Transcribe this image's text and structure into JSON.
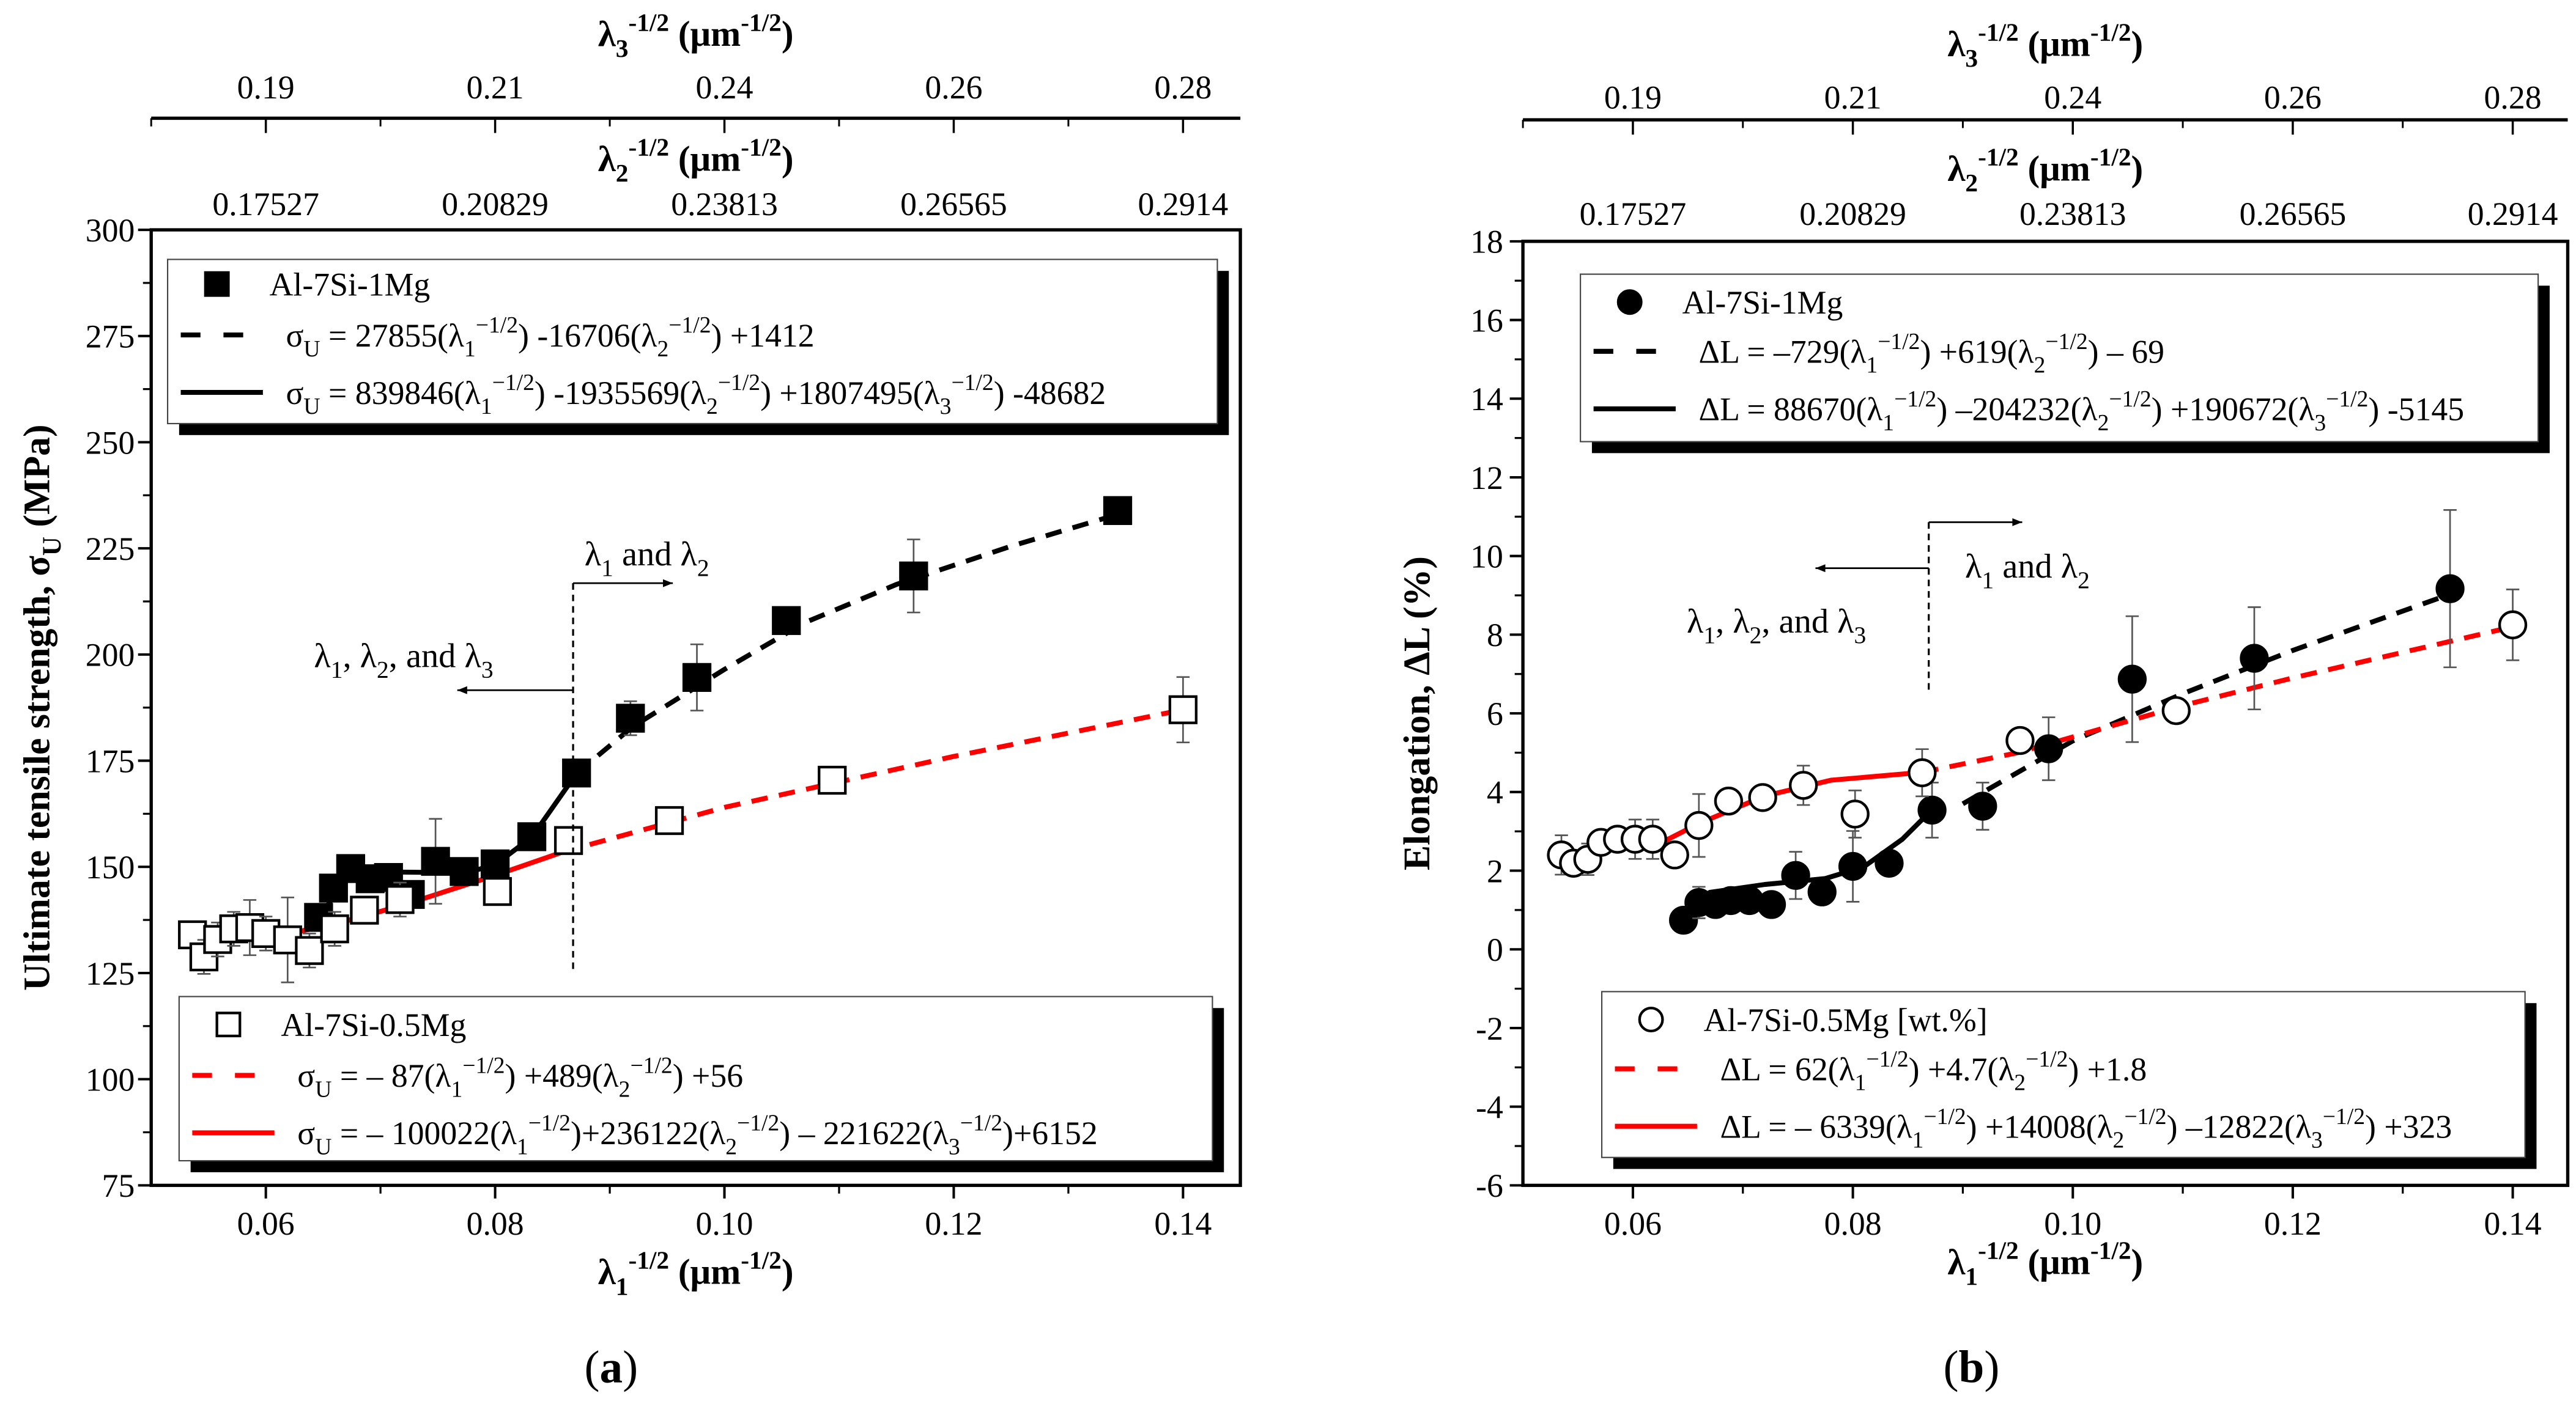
{
  "chart_data": [
    {
      "type": "scatter",
      "panel_label": "(a)",
      "xlabel": "λ_{1}^{-1/2} (μm^{-1/2})",
      "ylabel": "Ultimate tensile strength, σ_{U} (MPa)",
      "xlim": [
        0.05,
        0.145
      ],
      "ylim": [
        75,
        300
      ],
      "xticks": [
        0.06,
        0.08,
        0.1,
        0.12,
        0.14
      ],
      "xtick_labels": [
        "0.06",
        "0.08",
        "0.10",
        "0.12",
        "0.14"
      ],
      "yticks": [
        75,
        100,
        125,
        150,
        175,
        200,
        225,
        250,
        275,
        300
      ],
      "ytick_labels": [
        "75",
        "100",
        "125",
        "150",
        "175",
        "200",
        "225",
        "250",
        "275",
        "300"
      ],
      "top_axes": [
        {
          "label": "λ_{3}^{-1/2} (μm^{-1/2})",
          "tick_labels": [
            "0.19",
            "0.21",
            "0.24",
            "0.26",
            "0.28"
          ]
        },
        {
          "label": "λ_{2}^{-1/2} (μm^{-1/2})",
          "tick_labels": [
            "0.17527",
            "0.20829",
            "0.23813",
            "0.26565",
            "0.2914"
          ]
        }
      ],
      "series": [
        {
          "name": "Al-7Si-1Mg",
          "marker": "filled-square",
          "color": "#000000",
          "x": [
            0.0646,
            0.0659,
            0.0674,
            0.0691,
            0.0707,
            0.0726,
            0.0748,
            0.0773,
            0.08,
            0.0832,
            0.0871,
            0.0918,
            0.0976,
            0.1054,
            0.1165,
            0.1343
          ],
          "y": [
            138.1,
            145.0,
            149.6,
            147.2,
            147.5,
            143.5,
            151.3,
            148.9,
            150.7,
            157.1,
            172.1,
            185.0,
            194.6,
            208.0,
            218.5,
            233.9
          ],
          "err": [
            2,
            3,
            3,
            2,
            2,
            3,
            10,
            3,
            2,
            2,
            2,
            4,
            7.8,
            2,
            8.6,
            1.5
          ]
        },
        {
          "name": "Al-7Si-0.5Mg",
          "marker": "open-square",
          "color": "#000000",
          "x": [
            0.0536,
            0.0546,
            0.0558,
            0.0572,
            0.0586,
            0.06,
            0.0619,
            0.0638,
            0.066,
            0.0686,
            0.0717,
            0.0802,
            0.0864,
            0.0952,
            0.1094,
            0.14
          ],
          "y": [
            134.0,
            128.8,
            132.9,
            135.4,
            135.7,
            134.3,
            132.8,
            130.3,
            135.4,
            139.8,
            142.3,
            144.2,
            156.2,
            160.9,
            170.4,
            187.0
          ],
          "err": [
            2,
            4,
            4,
            4,
            6.5,
            4,
            10,
            4,
            4,
            3,
            4,
            3,
            3,
            3,
            1,
            7.7
          ]
        }
      ],
      "fits": [
        {
          "series": "Al-7Si-1Mg",
          "style": "dashed",
          "color": "#000000",
          "equation": "σ_{U} = 27855(λ_{1}^{−1/2}) -16706(λ_{2}^{−1/2}) +1412",
          "points": [
            [
              0.0871,
              172
            ],
            [
              0.092,
              183
            ],
            [
              0.1,
              196.5
            ],
            [
              0.107,
              207.5
            ],
            [
              0.115,
              216.5
            ],
            [
              0.125,
              225.5
            ],
            [
              0.1343,
              233
            ]
          ]
        },
        {
          "series": "Al-7Si-1Mg",
          "style": "solid",
          "color": "#000000",
          "equation": "σ_{U} = 839846(λ_{1}^{−1/2}) -1935569(λ_{2}^{−1/2}) +1807495(λ_{3}^{−1/2}) -48682",
          "points": [
            [
              0.0646,
              138
            ],
            [
              0.0674,
              148.5
            ],
            [
              0.0707,
              148.8
            ],
            [
              0.0775,
              148.6
            ],
            [
              0.08,
              150.5
            ],
            [
              0.0832,
              157
            ],
            [
              0.0871,
              172
            ]
          ]
        },
        {
          "series": "Al-7Si-0.5Mg",
          "style": "dashed",
          "color": "#ff0000",
          "equation": "σ_{U} = – 87(λ_{1}^{−1/2}) +489(λ_{2}^{−1/2}) +56",
          "points": [
            [
              0.0859,
              153.5
            ],
            [
              0.1,
              164
            ],
            [
              0.12,
              176
            ],
            [
              0.14,
              187
            ]
          ]
        },
        {
          "series": "Al-7Si-0.5Mg",
          "style": "solid",
          "color": "#ff0000",
          "equation": "σ_{U} = – 100022(λ_{1}^{−1/2})+236122(λ_{2}^{−1/2}) – 221622(λ_{3}^{−1/2})+6152",
          "points": [
            [
              0.0536,
              132.5
            ],
            [
              0.06,
              133.2
            ],
            [
              0.066,
              136.5
            ],
            [
              0.072,
              141
            ],
            [
              0.08,
              148
            ],
            [
              0.0859,
              153.5
            ]
          ]
        }
      ],
      "regime_boundary_x": 0.0868,
      "annotations": [
        "λ_{1} and λ_{2}",
        "λ_{1}, λ_{2}, and λ_{3}"
      ],
      "legend_placement": [
        "top",
        "bottom"
      ]
    },
    {
      "type": "scatter",
      "panel_label": "(b)",
      "xlabel": "λ_{1}^{-1/2} (μm^{-1/2})",
      "ylabel": "Elongation, ΔL (%)",
      "xlim": [
        0.05,
        0.145
      ],
      "ylim": [
        -6,
        18
      ],
      "xticks": [
        0.06,
        0.08,
        0.1,
        0.12,
        0.14
      ],
      "xtick_labels": [
        "0.06",
        "0.08",
        "0.10",
        "0.12",
        "0.14"
      ],
      "yticks": [
        -6,
        -4,
        -2,
        0,
        2,
        4,
        6,
        8,
        10,
        12,
        14,
        16,
        18
      ],
      "ytick_labels": [
        "-6",
        "-4",
        "-2",
        "0",
        "2",
        "4",
        "6",
        "8",
        "10",
        "12",
        "14",
        "16",
        "18"
      ],
      "top_axes": [
        {
          "label": "λ_{3}^{-1/2} (μm^{-1/2})",
          "tick_labels": [
            "0.19",
            "0.21",
            "0.24",
            "0.26",
            "0.28"
          ]
        },
        {
          "label": "λ_{2}^{-1/2} (μm^{-1/2})",
          "tick_labels": [
            "0.17527",
            "0.20829",
            "0.23813",
            "0.26565",
            "0.2914"
          ]
        }
      ],
      "series": [
        {
          "name": "Al-7Si-1Mg",
          "marker": "filled-circle",
          "color": "#000000",
          "x": [
            0.0646,
            0.066,
            0.0675,
            0.0689,
            0.0706,
            0.0726,
            0.0748,
            0.0772,
            0.08,
            0.0833,
            0.0872,
            0.0918,
            0.0978,
            0.1054,
            0.1165,
            0.1343
          ],
          "y": [
            0.74,
            1.19,
            1.14,
            1.24,
            1.24,
            1.14,
            1.88,
            1.46,
            2.11,
            2.19,
            3.54,
            3.64,
            5.1,
            6.87,
            7.4,
            9.17
          ],
          "err": [
            0.2,
            0.4,
            0.3,
            0.2,
            0.2,
            0.2,
            0.6,
            0.3,
            0.9,
            0.2,
            0.7,
            0.6,
            0.8,
            1.6,
            1.3,
            2.0
          ]
        },
        {
          "name": "Al-7Si-0.5Mg [wt.%]",
          "marker": "open-circle",
          "color": "#000000",
          "x": [
            0.0535,
            0.0546,
            0.0559,
            0.0571,
            0.0586,
            0.0602,
            0.0618,
            0.0638,
            0.066,
            0.0687,
            0.0718,
            0.0755,
            0.0802,
            0.0863,
            0.0952,
            0.1094,
            0.14
          ],
          "y": [
            2.4,
            2.19,
            2.29,
            2.72,
            2.8,
            2.8,
            2.8,
            2.4,
            3.15,
            3.77,
            3.86,
            4.17,
            3.44,
            4.49,
            5.31,
            6.07,
            8.25
          ],
          "err": [
            0.5,
            0.3,
            0.4,
            0.3,
            0.3,
            0.5,
            0.5,
            0.3,
            0.8,
            0.3,
            0.3,
            0.5,
            0.6,
            0.6,
            0.3,
            0.2,
            0.9
          ]
        }
      ],
      "fits": [
        {
          "series": "Al-7Si-1Mg",
          "style": "dashed",
          "color": "#000000",
          "equation": "ΔL = –729(λ_{1}^{−1/2}) +619(λ_{2}^{−1/2}) – 69",
          "points": [
            [
              0.09,
              3.7
            ],
            [
              0.0925,
              4.1
            ],
            [
              0.1,
              5.3
            ],
            [
              0.11,
              6.5
            ],
            [
              0.12,
              7.6
            ],
            [
              0.134,
              9.0
            ]
          ]
        },
        {
          "series": "Al-7Si-1Mg",
          "style": "solid",
          "color": "#000000",
          "equation": "ΔL = 88670(λ_{1}^{−1/2}) –204232(λ_{2}^{−1/2}) +190672(λ_{3}^{−1/2}) -5145",
          "points": [
            [
              0.0646,
              1.0
            ],
            [
              0.067,
              1.45
            ],
            [
              0.072,
              1.65
            ],
            [
              0.0775,
              1.8
            ],
            [
              0.081,
              2.1
            ],
            [
              0.0845,
              2.8
            ],
            [
              0.0872,
              3.55
            ]
          ]
        },
        {
          "series": "Al-7Si-0.5Mg [wt.%]",
          "style": "dashed",
          "color": "#ff0000",
          "equation": "ΔL = 62(λ_{1}^{−1/2}) +4.7(λ_{2}^{−1/2}) +1.8",
          "points": [
            [
              0.0863,
              4.5
            ],
            [
              0.095,
              5.0
            ],
            [
              0.1,
              5.4
            ],
            [
              0.11,
              6.2
            ],
            [
              0.12,
              6.9
            ],
            [
              0.14,
              8.2
            ]
          ]
        },
        {
          "series": "Al-7Si-0.5Mg [wt.%]",
          "style": "solid",
          "color": "#ff0000",
          "equation": "ΔL = – 6339(λ_{1}^{−1/2}) +14008(λ_{2}^{−1/2}) –12822(λ_{3}^{−1/2}) +323",
          "points": [
            [
              0.0625,
              2.7
            ],
            [
              0.066,
              3.2
            ],
            [
              0.072,
              3.9
            ],
            [
              0.078,
              4.3
            ],
            [
              0.0863,
              4.5
            ]
          ]
        }
      ],
      "regime_boundary_x": 0.0869,
      "annotations": [
        "λ_{1} and λ_{2}",
        "λ_{1}, λ_{2}, and λ_{3}"
      ],
      "legend_placement": [
        "top",
        "bottom"
      ]
    }
  ]
}
